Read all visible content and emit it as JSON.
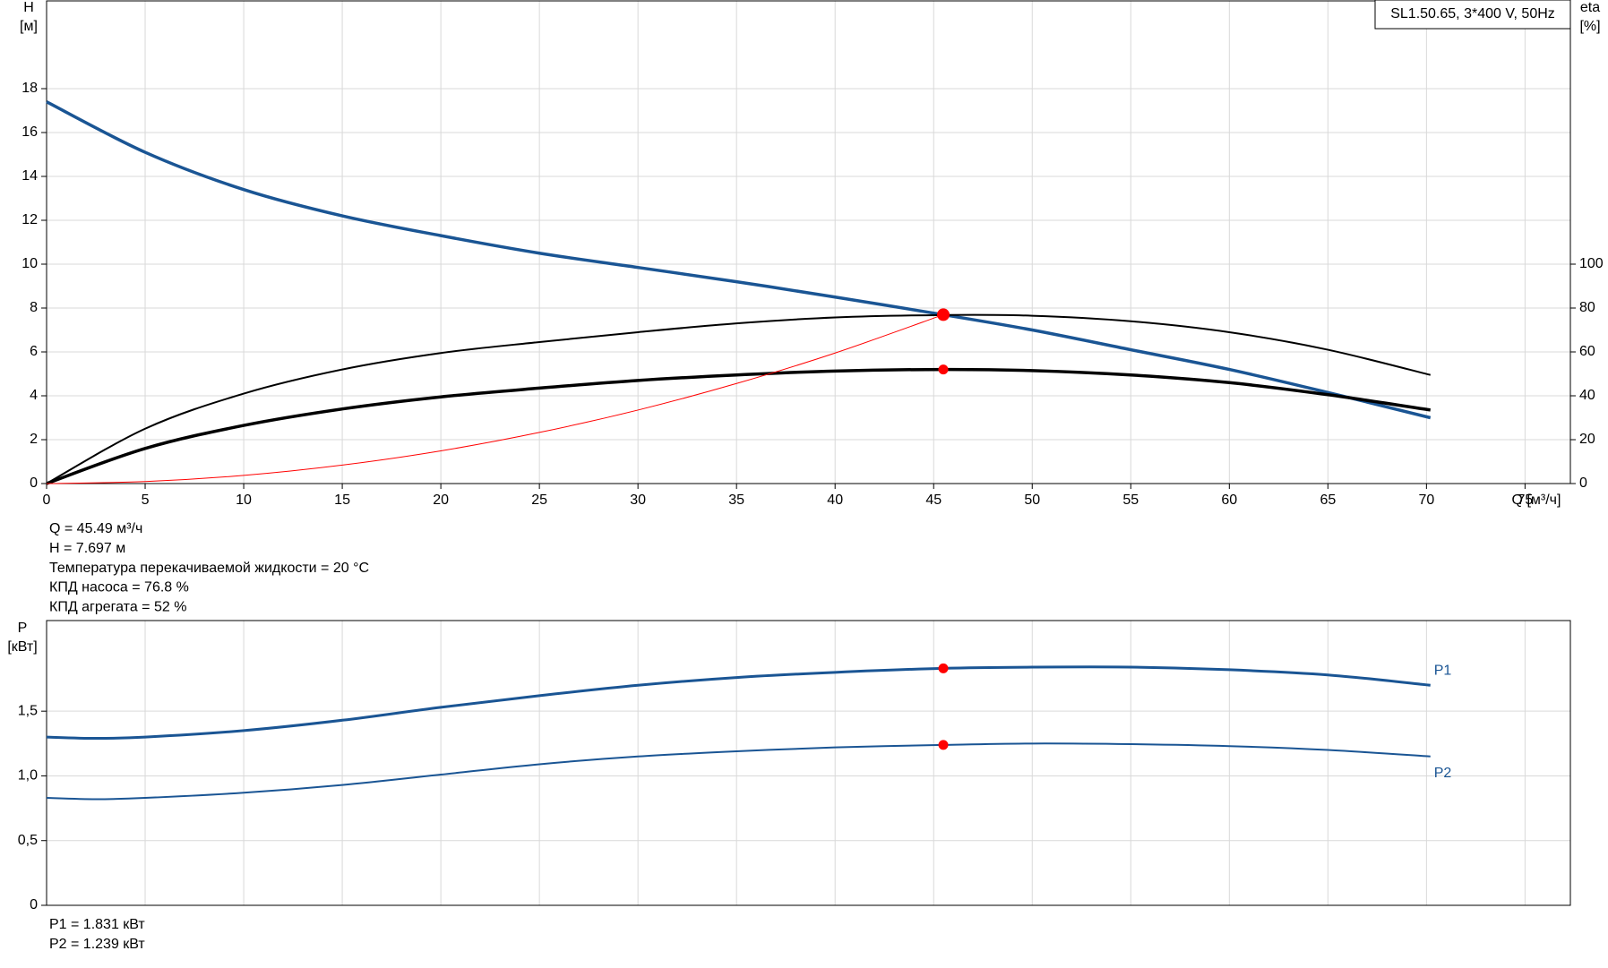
{
  "chart_data": [
    {
      "type": "line",
      "legend_box": "SL1.50.65, 3*400 V, 50Hz",
      "y_label": "H",
      "y_unit": "[м]",
      "y2_label": "eta",
      "y2_unit": "[%]",
      "x_label": "Q [м³/ч]",
      "xlim": [
        0,
        77.3
      ],
      "xticks": [
        0,
        5,
        10,
        15,
        20,
        25,
        30,
        35,
        40,
        45,
        50,
        55,
        60,
        65,
        70,
        75
      ],
      "ylim": [
        0,
        22
      ],
      "yticks": [
        0,
        2,
        4,
        6,
        8,
        10,
        12,
        14,
        16,
        18
      ],
      "y2lim": [
        0,
        220
      ],
      "y2ticks": [
        0,
        20,
        40,
        60,
        80,
        100
      ],
      "grid": true,
      "series": [
        {
          "color": "#1a5594",
          "width": 3.5,
          "x": [
            0,
            5,
            10,
            15,
            20,
            25,
            30,
            35,
            40,
            45.49,
            50,
            55,
            60,
            65,
            70.2
          ],
          "values": [
            17.4,
            15.1,
            13.4,
            12.2,
            11.3,
            10.5,
            9.85,
            9.2,
            8.5,
            7.697,
            7.0,
            6.1,
            5.2,
            4.15,
            3.0
          ]
        },
        {
          "color": "#000000",
          "width": 2,
          "axis": "y2",
          "x": [
            0,
            5,
            10,
            15,
            20,
            25,
            30,
            35,
            40,
            45.49,
            50,
            55,
            60,
            65,
            70.2
          ],
          "values": [
            0,
            25,
            41,
            52,
            59.5,
            64.5,
            69,
            73,
            75.7,
            76.8,
            76.5,
            74,
            69,
            61,
            49.5
          ]
        },
        {
          "color": "#000000",
          "width": 3.5,
          "axis": "y2",
          "x": [
            0,
            5,
            10,
            15,
            20,
            25,
            30,
            35,
            40,
            45.49,
            50,
            55,
            60,
            65,
            70.2
          ],
          "values": [
            0,
            16,
            26.5,
            34,
            39.5,
            43.5,
            47,
            49.5,
            51.3,
            52,
            51.5,
            49.5,
            46,
            40.5,
            33.5
          ]
        },
        {
          "color": "#ff0000",
          "width": 1,
          "x": [
            0,
            5,
            10,
            15,
            20,
            25,
            30,
            35,
            40,
            45.49
          ],
          "values": [
            0,
            0.09,
            0.37,
            0.84,
            1.49,
            2.33,
            3.35,
            4.56,
            5.95,
            7.697
          ]
        }
      ],
      "markers": [
        {
          "x": 45.49,
          "y": 7.697,
          "color": "#ff0000"
        },
        {
          "x": 45.49,
          "y": 52,
          "axis": "y2",
          "color": "#ff0000"
        }
      ],
      "info": [
        "Q = 45.49 м³/ч",
        "H = 7.697 м",
        "Температура перекачиваемой жидкости = 20 °C",
        "КПД насоса = 76.8 %",
        "КПД агрегата = 52 %"
      ]
    },
    {
      "type": "line",
      "y_label": "P",
      "y_unit": "[кВт]",
      "xlim": [
        0,
        77.3
      ],
      "ylim": [
        0,
        2.2
      ],
      "yticks": [
        0,
        {
          "value": 0.5,
          "label": "0,5"
        },
        {
          "value": 1.0,
          "label": "1,0"
        },
        {
          "value": 1.5,
          "label": "1,5"
        }
      ],
      "grid": true,
      "series": [
        {
          "name": "P1",
          "color": "#1a5594",
          "width": 3,
          "x": [
            0,
            2.5,
            5,
            10,
            15,
            20,
            25,
            30,
            35,
            40,
            45.49,
            50,
            55,
            60,
            65,
            70.2
          ],
          "values": [
            1.3,
            1.29,
            1.3,
            1.35,
            1.43,
            1.53,
            1.62,
            1.7,
            1.76,
            1.8,
            1.831,
            1.84,
            1.84,
            1.82,
            1.78,
            1.7
          ]
        },
        {
          "name": "P2",
          "color": "#1a5594",
          "width": 2,
          "x": [
            0,
            2.5,
            5,
            10,
            15,
            20,
            25,
            30,
            35,
            40,
            45.49,
            50,
            55,
            60,
            65,
            70.2
          ],
          "values": [
            0.83,
            0.82,
            0.83,
            0.87,
            0.93,
            1.01,
            1.09,
            1.15,
            1.19,
            1.22,
            1.239,
            1.25,
            1.245,
            1.23,
            1.2,
            1.15
          ]
        }
      ],
      "markers": [
        {
          "x": 45.49,
          "y": 1.831,
          "color": "#ff0000"
        },
        {
          "x": 45.49,
          "y": 1.239,
          "color": "#ff0000"
        }
      ],
      "info": [
        "P1 = 1.831 кВт",
        "P2 = 1.239 кВт"
      ]
    }
  ]
}
